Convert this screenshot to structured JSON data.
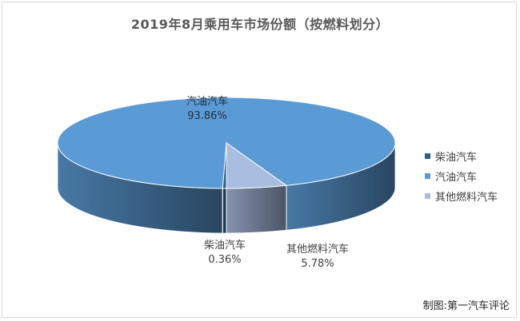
{
  "chart_data": {
    "type": "pie",
    "title": "2019年8月乘用车市场份额（按燃料划分）",
    "categories": [
      "柴油汽车",
      "汽油汽车",
      "其他燃料汽车"
    ],
    "values": [
      0.36,
      93.86,
      5.78
    ],
    "value_labels": [
      "0.36%",
      "93.86%",
      "5.78%"
    ],
    "colors": [
      "#2e5f8a",
      "#5b9bd5",
      "#a9bde0"
    ],
    "legend_position": "right",
    "style": "3d-pie"
  },
  "source_note": "制图:第一汽车评论"
}
